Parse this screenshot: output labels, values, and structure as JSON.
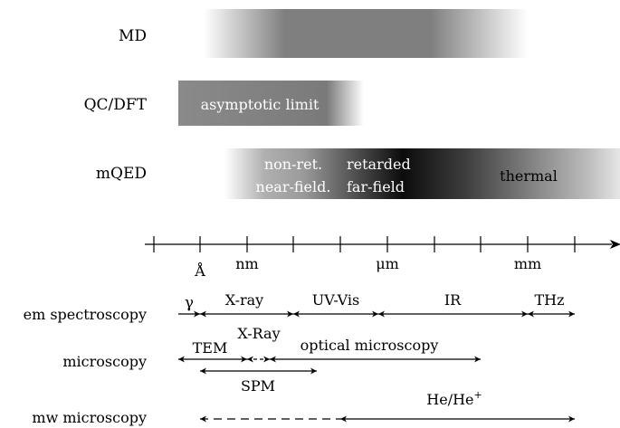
{
  "rows": {
    "md": "MD",
    "qc": "QC/DFT",
    "mqed": "mQED"
  },
  "bands": {
    "qc_text": "asymptotic limit",
    "nonret_1": "non-ret.",
    "nonret_2": "near-field.",
    "ret_1": "retarded",
    "ret_2": "far-field",
    "thermal": "thermal"
  },
  "axis": {
    "ticks": [
      "Å",
      "nm",
      "μm",
      "mm"
    ]
  },
  "techniques": {
    "em": "em spectroscopy",
    "micro": "microscopy",
    "mw": "mw microscopy"
  },
  "ranges": {
    "gamma": "γ",
    "xray": "X-ray",
    "uvvis": "UV-Vis",
    "ir": "IR",
    "thz": "THz",
    "tem": "TEM",
    "xray2": "X-Ray",
    "optical": "optical microscopy",
    "spm": "SPM",
    "he": "He/He",
    "he_sup": "+"
  }
}
